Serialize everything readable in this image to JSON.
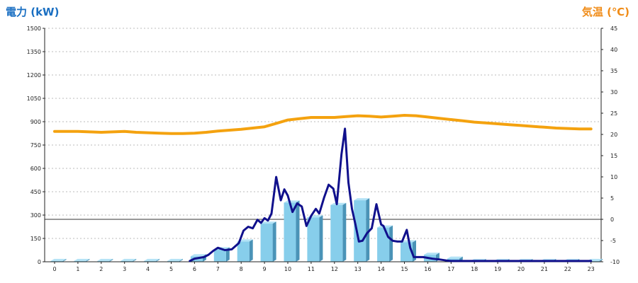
{
  "chart_data": {
    "type": "bar+line",
    "left_axis_title": "電力 (kW)",
    "right_axis_title": "気温 (℃)",
    "categories": [
      "0",
      "1",
      "2",
      "3",
      "4",
      "5",
      "6",
      "7",
      "8",
      "9",
      "10",
      "11",
      "12",
      "13",
      "14",
      "15",
      "16",
      "17",
      "18",
      "19",
      "20",
      "21",
      "22",
      "23"
    ],
    "left_ticks": [
      "0",
      "150",
      "300",
      "450",
      "600",
      "750",
      "900",
      "1050",
      "1200",
      "1350",
      "1500"
    ],
    "right_ticks": [
      "-10",
      "-5",
      "0",
      "5",
      "10",
      "15",
      "20",
      "25",
      "30",
      "35",
      "40",
      "45"
    ],
    "ylim_left": [
      0,
      1500
    ],
    "ylim_right": [
      -10,
      45
    ],
    "grid": true,
    "series": [
      {
        "kind": "bar",
        "axis": "left",
        "values": [
          5,
          5,
          5,
          5,
          5,
          5,
          35,
          80,
          130,
          245,
          380,
          285,
          365,
          395,
          220,
          125,
          45,
          20,
          5,
          5,
          5,
          5,
          5,
          5
        ]
      },
      {
        "kind": "line",
        "axis": "left",
        "x": [
          5.8,
          6.0,
          6.2,
          6.4,
          6.6,
          6.8,
          7.0,
          7.3,
          7.6,
          7.9,
          8.1,
          8.3,
          8.5,
          8.7,
          8.85,
          9.0,
          9.15,
          9.3,
          9.5,
          9.7,
          9.85,
          10.0,
          10.2,
          10.4,
          10.6,
          10.8,
          11.0,
          11.2,
          11.35,
          11.55,
          11.75,
          11.95,
          12.1,
          12.3,
          12.45,
          12.6,
          12.75,
          12.9,
          13.05,
          13.2,
          13.4,
          13.6,
          13.8,
          14.0,
          14.1,
          14.3,
          14.5,
          14.7,
          14.9,
          15.1,
          15.25,
          15.4,
          15.6,
          15.8,
          16.0,
          16.2,
          16.5,
          16.8,
          17.0,
          17.2,
          17.5,
          18.0,
          18.5,
          19.0,
          20.0,
          21.0,
          22.0,
          23.0
        ],
        "values": [
          5,
          20,
          25,
          30,
          45,
          70,
          90,
          75,
          80,
          120,
          200,
          225,
          215,
          270,
          250,
          280,
          265,
          310,
          545,
          395,
          465,
          425,
          320,
          375,
          355,
          230,
          295,
          340,
          310,
          410,
          495,
          470,
          370,
          690,
          855,
          510,
          340,
          240,
          130,
          135,
          185,
          215,
          370,
          240,
          230,
          160,
          135,
          130,
          130,
          205,
          90,
          30,
          30,
          30,
          25,
          20,
          15,
          8,
          5,
          5,
          5,
          5,
          5,
          5,
          5,
          5,
          5,
          5
        ]
      },
      {
        "kind": "line",
        "axis": "right",
        "x": [
          0,
          0.5,
          1,
          1.5,
          2,
          2.5,
          3,
          3.5,
          4,
          4.5,
          5,
          5.5,
          6,
          6.5,
          7,
          7.5,
          8,
          8.5,
          9,
          9.5,
          10,
          10.5,
          11,
          11.5,
          12,
          12.5,
          13,
          13.5,
          14,
          14.5,
          15,
          15.5,
          16,
          16.5,
          17,
          17.5,
          18,
          18.5,
          19,
          19.5,
          20,
          20.5,
          21,
          21.5,
          22,
          22.5,
          23
        ],
        "values": [
          20.7,
          20.7,
          20.7,
          20.6,
          20.5,
          20.6,
          20.7,
          20.5,
          20.4,
          20.3,
          20.2,
          20.2,
          20.3,
          20.5,
          20.8,
          21.0,
          21.2,
          21.5,
          21.8,
          22.6,
          23.4,
          23.7,
          24.0,
          24.0,
          24.0,
          24.2,
          24.4,
          24.3,
          24.1,
          24.3,
          24.5,
          24.4,
          24.1,
          23.8,
          23.5,
          23.2,
          22.9,
          22.7,
          22.5,
          22.3,
          22.1,
          21.9,
          21.7,
          21.5,
          21.4,
          21.3,
          21.3
        ]
      }
    ],
    "colors": {
      "bar_front": "#87ceeb",
      "bar_side": "#4a93b7",
      "bar_top": "#b4e3f6",
      "power_line": "#10108c",
      "temp_line": "#f4a20f",
      "grid": "#bbbbbb",
      "axis": "#222222",
      "left_title": "#1a6fc2",
      "right_title": "#f08c18"
    }
  }
}
